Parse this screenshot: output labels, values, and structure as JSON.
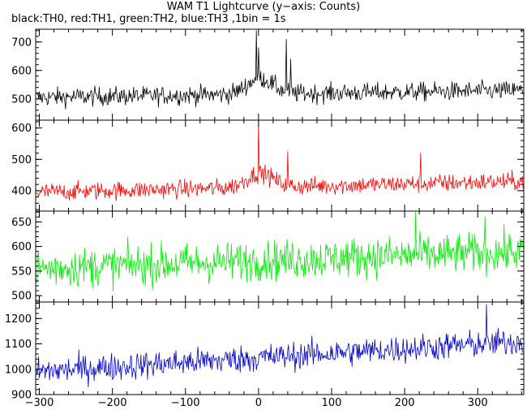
{
  "chart_data": {
    "type": "line",
    "title": "WAM T1 Lightcurve (y−axis: Counts)",
    "subtitle": "black:TH0, red:TH1, green:TH2, blue:TH3 ,1bin = 1s",
    "xlim": [
      -305,
      363
    ],
    "x_ticks": [
      -300,
      -200,
      -100,
      0,
      100,
      200,
      300
    ],
    "x_tick_labels": [
      "−300",
      "−200",
      "−100",
      "0",
      "100",
      "200",
      "300"
    ],
    "panels": [
      {
        "series_name": "TH0",
        "color": "#000000",
        "ylim": [
          425,
          745
        ],
        "y_ticks": [
          500,
          600,
          700
        ],
        "base_start": 505,
        "base_end": 530,
        "noise": 23,
        "features": [
          {
            "x": -3,
            "y": 740
          },
          {
            "x": 0,
            "y": 680
          },
          {
            "x": 38,
            "y": 710
          },
          {
            "x": 44,
            "y": 640
          }
        ],
        "bump": {
          "center": 2,
          "width": 25,
          "height": 55
        }
      },
      {
        "series_name": "TH1",
        "color": "#ff0000",
        "ylim": [
          335,
          625
        ],
        "y_ticks": [
          400,
          500,
          600
        ],
        "base_start": 395,
        "base_end": 430,
        "noise": 20,
        "features": [
          {
            "x": 0,
            "y": 625
          },
          {
            "x": 40,
            "y": 525
          },
          {
            "x": 222,
            "y": 520
          }
        ],
        "bump": {
          "center": 2,
          "width": 25,
          "height": 45
        }
      },
      {
        "series_name": "TH2",
        "color": "#00ee00",
        "ylim": [
          487,
          672
        ],
        "y_ticks": [
          500,
          550,
          600,
          650
        ],
        "base_start": 555,
        "base_end": 590,
        "noise": 28,
        "features": [
          {
            "x": 215,
            "y": 670
          },
          {
            "x": 310,
            "y": 660
          }
        ],
        "bump": {
          "center": 0,
          "width": 20,
          "height": 0
        }
      },
      {
        "series_name": "TH3",
        "color": "#0000cc",
        "ylim": [
          900,
          1265
        ],
        "y_ticks": [
          900,
          1000,
          1100,
          1200
        ],
        "base_start": 990,
        "base_end": 1110,
        "noise": 38,
        "features": [
          {
            "x": 312,
            "y": 1255
          }
        ],
        "bump": {
          "center": 0,
          "width": 20,
          "height": 0
        }
      }
    ]
  }
}
